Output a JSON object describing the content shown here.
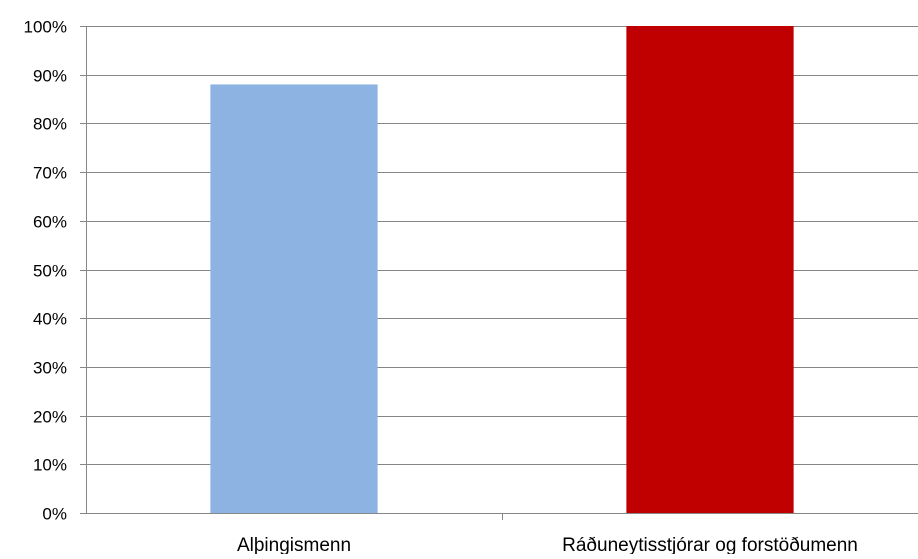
{
  "chart_data": {
    "type": "bar",
    "title": "",
    "xlabel": "",
    "ylabel": "",
    "categories": [
      "Alþingismenn",
      "Ráðuneytisstjórar og forstöðumenn"
    ],
    "values": [
      88,
      100
    ],
    "colors": [
      "#8DB3E2",
      "#C00000"
    ],
    "ylim": [
      0,
      100
    ],
    "yticks": [
      {
        "value": 0,
        "label": "0%"
      },
      {
        "value": 10,
        "label": "10%"
      },
      {
        "value": 20,
        "label": "20%"
      },
      {
        "value": 30,
        "label": "30%"
      },
      {
        "value": 40,
        "label": "40%"
      },
      {
        "value": 50,
        "label": "50%"
      },
      {
        "value": 60,
        "label": "60%"
      },
      {
        "value": 70,
        "label": "70%"
      },
      {
        "value": 80,
        "label": "80%"
      },
      {
        "value": 90,
        "label": "90%"
      },
      {
        "value": 100,
        "label": "100%"
      }
    ],
    "grid": true,
    "legend": "none",
    "gridline_color": "#868686",
    "axis_color": "#868686"
  }
}
